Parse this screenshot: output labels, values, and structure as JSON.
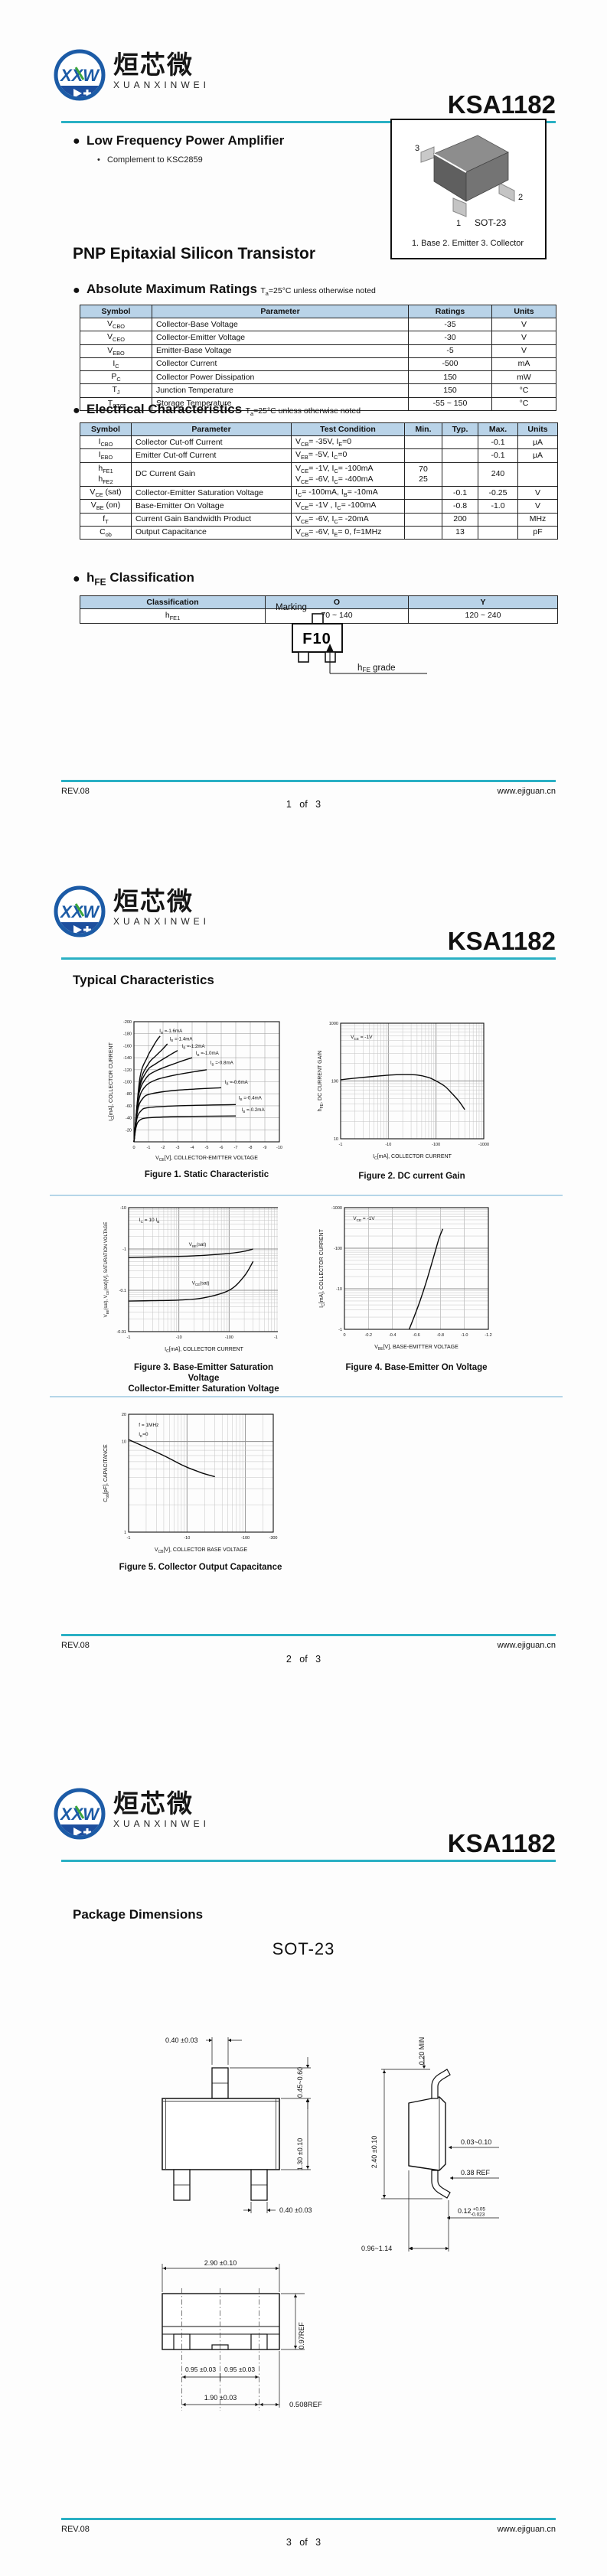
{
  "brand": {
    "logo_cn": "烜芯微",
    "logo_en": "XUANXINWEI",
    "logo_monogram": "XXW",
    "part": "KSA1182",
    "accent_color": "#2ab0c4",
    "table_header_color": "#b9d3e8"
  },
  "footer": {
    "rev": "REV.08",
    "site": "www.ejiguan.cn",
    "page1": "1 of 3",
    "page2": "2 of 3",
    "page3": "3 of 3"
  },
  "page1": {
    "feature_title": "Low Frequency Power Amplifier",
    "feature_sub": "Complement to KSC2859",
    "pkg_label": "SOT-23",
    "pkg_pin1": "1",
    "pkg_pin2": "2",
    "pkg_pin3": "3",
    "pkg_caption": "1. Base   2. Emitter   3. Collector",
    "type_title": "PNP Epitaxial Silicon Transistor",
    "abs_title": "Absolute Maximum Ratings",
    "abs_note": "T~a~=25°C unless otherwise noted",
    "abs_headers": [
      "Symbol",
      "Parameter",
      "Ratings",
      "Units"
    ],
    "abs_rows": [
      [
        "V~CBO~",
        "Collector-Base Voltage",
        "-35",
        "V"
      ],
      [
        "V~CEO~",
        "Collector-Emitter Voltage",
        "-30",
        "V"
      ],
      [
        "V~EBO~",
        "Emitter-Base Voltage",
        "-5",
        "V"
      ],
      [
        "I~C~",
        "Collector Current",
        "-500",
        "mA"
      ],
      [
        "P~C~",
        "Collector Power Dissipation",
        "150",
        "mW"
      ],
      [
        "T~J~",
        "Junction Temperature",
        "150",
        "°C"
      ],
      [
        "T~STG~",
        "Storage Temperature",
        "-55 ~ 150",
        "°C"
      ]
    ],
    "elec_title": "Electrical Characteristics",
    "elec_note": "T~a~=25°C unless otherwise noted",
    "elec_headers": [
      "Symbol",
      "Parameter",
      "Test Condition",
      "Min.",
      "Typ.",
      "Max.",
      "Units"
    ],
    "elec_rows": [
      [
        "I~CBO~",
        "Collector Cut-off Current",
        "V~CB~= -35V, I~E~=0",
        "",
        "",
        "-0.1",
        "μA"
      ],
      [
        "I~EBO~",
        "Emitter Cut-off Current",
        "V~EB~= -5V, I~C~=0",
        "",
        "",
        "-0.1",
        "μA"
      ],
      [
        "h~FE1~\nh~FE2~",
        "DC Current Gain",
        "V~CE~= -1V, I~C~= -100mA\nV~CE~= -6V, I~C~= -400mA",
        "70\n25",
        "",
        "240",
        ""
      ],
      [
        "V~CE~ (sat)",
        "Collector-Emitter Saturation Voltage",
        "I~C~= -100mA, I~B~= -10mA",
        "",
        "-0.1",
        "-0.25",
        "V"
      ],
      [
        "V~BE~ (on)",
        "Base-Emitter On Voltage",
        "V~CE~= -1V , I~C~= -100mA",
        "",
        "-0.8",
        "-1.0",
        "V"
      ],
      [
        "f~T~",
        "Current Gain Bandwidth Product",
        "V~CE~= -6V, I~C~= -20mA",
        "",
        "200",
        "",
        "MHz"
      ],
      [
        "C~ob~",
        "Output Capacitance",
        "V~CB~= -6V, I~E~= 0, f=1MHz",
        "",
        "13",
        "",
        "pF"
      ]
    ],
    "hfe_title": "h~FE~ Classification",
    "hfe_headers": [
      "Classification",
      "O",
      "Y"
    ],
    "hfe_rows": [
      [
        "h~FE1~",
        "70 ~ 140",
        "120 ~ 240"
      ]
    ],
    "marking_label": "Marking",
    "marking_code": "F10",
    "marking_grade": "h~FE~ grade"
  },
  "page2": {
    "title": "Typical Characteristics"
  },
  "chart_data": [
    {
      "type": "line",
      "title": "Figure 1. Static Characteristic",
      "xlabel": "V~CE~[V], COLLECTOR-EMITTER VOLTAGE",
      "ylabel": "I~C~[mA], COLLECTOR CURRENT",
      "xscale": "linear",
      "xmin": 0,
      "xmax": -10,
      "yscale": "linear",
      "ymin": 0,
      "ymax": -200,
      "xticks": [
        0,
        -1,
        -2,
        -3,
        -4,
        -5,
        -6,
        -7,
        -8,
        -9,
        -10
      ],
      "xtick_labels": [
        "0",
        "-1",
        "-2",
        "-3",
        "-4",
        "-5",
        "-6",
        "-7",
        "-8",
        "-9",
        "-10"
      ],
      "yticks": [
        -20,
        -40,
        -60,
        -80,
        -100,
        -120,
        -140,
        -160,
        -180,
        -200
      ],
      "ytick_labels": [
        "-20",
        "-40",
        "-60",
        "-80",
        "-100",
        "-120",
        "-140",
        "-160",
        "-180",
        "-200"
      ],
      "annotations": [],
      "series": [
        {
          "name": "IB = -0.2mA",
          "label": "I~B~ =-0.2mA",
          "points": [
            [
              0,
              0
            ],
            [
              -0.15,
              -25
            ],
            [
              -0.4,
              -36
            ],
            [
              -1,
              -40
            ],
            [
              -3,
              -42
            ],
            [
              -7,
              -43
            ]
          ],
          "lx": 0.74,
          "ly": 0.745
        },
        {
          "name": "IB = -0.4mA",
          "label": "I~B~ =-0.4mA",
          "points": [
            [
              0,
              0
            ],
            [
              -0.2,
              -38
            ],
            [
              -0.5,
              -52
            ],
            [
              -1,
              -57
            ],
            [
              -3,
              -60
            ],
            [
              -7,
              -62
            ]
          ],
          "lx": 0.72,
          "ly": 0.645
        },
        {
          "name": "IB = -0.6mA",
          "label": "I~B~ =-0.6mA",
          "points": [
            [
              0,
              0
            ],
            [
              -0.25,
              -52
            ],
            [
              -0.6,
              -72
            ],
            [
              -1.2,
              -80
            ],
            [
              -3,
              -86
            ],
            [
              -6,
              -90
            ]
          ],
          "lx": 0.625,
          "ly": 0.515
        },
        {
          "name": "IB = -0.8mA",
          "label": "I~B~ =-0.8mA",
          "points": [
            [
              0,
              0
            ],
            [
              -0.3,
              -65
            ],
            [
              -0.7,
              -90
            ],
            [
              -1.5,
              -103
            ],
            [
              -3,
              -112
            ],
            [
              -5,
              -120
            ]
          ],
          "lx": 0.525,
          "ly": 0.355
        },
        {
          "name": "IB = -1.0mA",
          "label": "I~B~ =-1.0mA",
          "points": [
            [
              0,
              0
            ],
            [
              -0.3,
              -75
            ],
            [
              -0.8,
              -105
            ],
            [
              -1.5,
              -118
            ],
            [
              -3,
              -132
            ],
            [
              -4,
              -140
            ]
          ],
          "lx": 0.425,
          "ly": 0.275
        },
        {
          "name": "IB = -1.2mA",
          "label": "I~B~ =-1.2mA",
          "points": [
            [
              0,
              0
            ],
            [
              -0.35,
              -85
            ],
            [
              -0.9,
              -118
            ],
            [
              -1.5,
              -130
            ],
            [
              -2.5,
              -145
            ],
            [
              -3,
              -152
            ]
          ],
          "lx": 0.33,
          "ly": 0.215
        },
        {
          "name": "IB = -1.4mA",
          "label": "I~B~ =-1.4mA",
          "points": [
            [
              0,
              0
            ],
            [
              -0.4,
              -95
            ],
            [
              -1,
              -130
            ],
            [
              -1.5,
              -143
            ],
            [
              -2,
              -155
            ],
            [
              -2.3,
              -163
            ]
          ],
          "lx": 0.245,
          "ly": 0.155
        },
        {
          "name": "IB = -1.6mA",
          "label": "I~B~ =-1.6mA",
          "points": [
            [
              0,
              0
            ],
            [
              -0.4,
              -105
            ],
            [
              -0.9,
              -140
            ],
            [
              -1.3,
              -158
            ],
            [
              -1.6,
              -170
            ],
            [
              -1.8,
              -176
            ]
          ],
          "lx": 0.175,
          "ly": 0.09
        }
      ]
    },
    {
      "type": "line",
      "title": "Figure 2. DC current Gain",
      "xlabel": "I~C~[mA], COLLECTOR CURRENT",
      "ylabel": "h~FE~, DC CURRENT GAIN",
      "xscale": "log",
      "xmin": -1,
      "xmax": -1000,
      "yscale": "log",
      "ymin": 10,
      "ymax": 1000,
      "xticks": [
        -1,
        -10,
        -100,
        -1000
      ],
      "xtick_labels": [
        "-1",
        "-10",
        "-100",
        "-1000"
      ],
      "yticks": [
        10,
        100,
        1000
      ],
      "ytick_labels": [
        "10",
        "100",
        "1000"
      ],
      "annotations": [
        {
          "text": "V~CE~ = -1V",
          "ax": 0.07,
          "ay": 0.1
        }
      ],
      "series": [
        {
          "name": "hFE",
          "label": "",
          "points": [
            [
              -1,
              105
            ],
            [
              -2,
              112
            ],
            [
              -5,
              120
            ],
            [
              -10,
              126
            ],
            [
              -20,
              129
            ],
            [
              -40,
              127
            ],
            [
              -70,
              115
            ],
            [
              -100,
              100
            ],
            [
              -150,
              82
            ],
            [
              -200,
              65
            ],
            [
              -300,
              45
            ],
            [
              -400,
              32
            ]
          ]
        }
      ]
    },
    {
      "type": "line",
      "title": "Figure 3. Base-Emitter Saturation Voltage",
      "title2": "Collector-Emitter Saturation Voltage",
      "xlabel": "I~C~[mA], COLLECTOR CURRENT",
      "ylabel": "V~BE~(sat), V~CE~(sat)[V], SATURATION VOLTAGE",
      "xscale": "log",
      "xmin": -1,
      "xmax": -1000,
      "yscale": "log",
      "ymin": -0.01,
      "ymax": -10,
      "xticks": [
        -1,
        -10,
        -100,
        -1000
      ],
      "xtick_labels": [
        "-1",
        "-10",
        "-100",
        "-1000"
      ],
      "yticks": [
        -0.01,
        -0.1,
        -1,
        -10
      ],
      "ytick_labels": [
        "-0.01",
        "-0.1",
        "-1",
        "-10"
      ],
      "annotations": [
        {
          "text": "I~C~ = 10 I~B~",
          "ax": 0.07,
          "ay": 0.08
        }
      ],
      "series": [
        {
          "name": "VBE(sat)",
          "label": "V~BE~(sat)",
          "points": [
            [
              -1,
              -0.62
            ],
            [
              -3,
              -0.64
            ],
            [
              -10,
              -0.66
            ],
            [
              -30,
              -0.7
            ],
            [
              -100,
              -0.78
            ],
            [
              -200,
              -0.88
            ],
            [
              -300,
              -1.0
            ]
          ],
          "lx": 0.4,
          "ly": 0.31
        },
        {
          "name": "VCE(sat)",
          "label": "V~CE~(sat)",
          "points": [
            [
              -1,
              -0.055
            ],
            [
              -3,
              -0.056
            ],
            [
              -10,
              -0.058
            ],
            [
              -30,
              -0.065
            ],
            [
              -100,
              -0.1
            ],
            [
              -200,
              -0.22
            ],
            [
              -300,
              -0.5
            ]
          ],
          "lx": 0.42,
          "ly": 0.62
        }
      ]
    },
    {
      "type": "line",
      "title": "Figure 4. Base-Emitter On Voltage",
      "xlabel": "V~BE~[V], BASE-EMITTER VOLTAGE",
      "ylabel": "I~C~[mA], COLLECTOR CURRENT",
      "xscale": "linear",
      "xmin": 0,
      "xmax": -1.2,
      "yscale": "log",
      "ymin": -1,
      "ymax": -1000,
      "xticks": [
        0,
        -0.2,
        -0.4,
        -0.6,
        -0.8,
        -1.0,
        -1.2
      ],
      "xtick_labels": [
        "0",
        "-0.2",
        "-0.4",
        "-0.6",
        "-0.8",
        "-1.0",
        "-1.2"
      ],
      "yticks": [
        -1,
        -10,
        -100,
        -1000
      ],
      "ytick_labels": [
        "-1",
        "-10",
        "-100",
        "-1000"
      ],
      "annotations": [
        {
          "text": "V~CE~ = -1V",
          "ax": 0.06,
          "ay": 0.07
        }
      ],
      "series": [
        {
          "name": "IC vs VBE",
          "label": "",
          "points": [
            [
              -0.54,
              -1
            ],
            [
              -0.58,
              -2
            ],
            [
              -0.63,
              -5
            ],
            [
              -0.68,
              -14
            ],
            [
              -0.72,
              -35
            ],
            [
              -0.76,
              -90
            ],
            [
              -0.79,
              -180
            ],
            [
              -0.82,
              -300
            ]
          ]
        }
      ]
    },
    {
      "type": "line",
      "title": "Figure 5. Collector Output Capacitance",
      "xlabel": "V~CB~[V], COLLECTOR BASE VOLTAGE",
      "ylabel": "C~ob~[pF], CAPACITANCE",
      "xscale": "log",
      "xmin": -1,
      "xmax": -300,
      "yscale": "log",
      "ymin": 1,
      "ymax": 20,
      "xticks": [
        -1,
        -10,
        -100,
        -300
      ],
      "xtick_labels": [
        "-1",
        "-10",
        "-100",
        "-300"
      ],
      "yticks": [
        1,
        10,
        20
      ],
      "ytick_labels": [
        "1",
        "10",
        "20"
      ],
      "annotations": [
        {
          "text": "f = 1MHz",
          "ax": 0.07,
          "ay": 0.07
        },
        {
          "text": "I~E~=0",
          "ax": 0.07,
          "ay": 0.15
        }
      ],
      "series": [
        {
          "name": "Cob",
          "label": "",
          "points": [
            [
              -1,
              10.5
            ],
            [
              -2,
              8.6
            ],
            [
              -4,
              7
            ],
            [
              -7,
              5.8
            ],
            [
              -10,
              5.2
            ],
            [
              -15,
              4.7
            ],
            [
              -20,
              4.4
            ],
            [
              -30,
              4.1
            ]
          ]
        }
      ]
    }
  ],
  "page3": {
    "title": "Package Dimensions",
    "pkg_title": "SOT-23",
    "dims": {
      "front_pin_w": "0.40 ±0.03",
      "front_pin_h": "0.45~0.60",
      "front_body_h": "1.30 ±0.10",
      "side_top": "0.20 MIN",
      "side_total": "2.40 ±0.10",
      "side_standoff": "0.03~0.10",
      "side_lead_ref": "0.38 REF",
      "side_lead_t": "0.12",
      "side_lead_t_plus": "+0.05",
      "side_lead_t_minus": "-0.023",
      "side_foot": "0.96~1.14",
      "bot_pin_w": "0.40 ±0.03",
      "bot_w": "2.90 ±0.10",
      "bot_d": "0.97REF",
      "pitch_a": "0.95 ±0.03",
      "pitch_b": "0.95 ±0.03",
      "span": "1.90 ±0.03",
      "ref508": "0.508REF"
    }
  }
}
